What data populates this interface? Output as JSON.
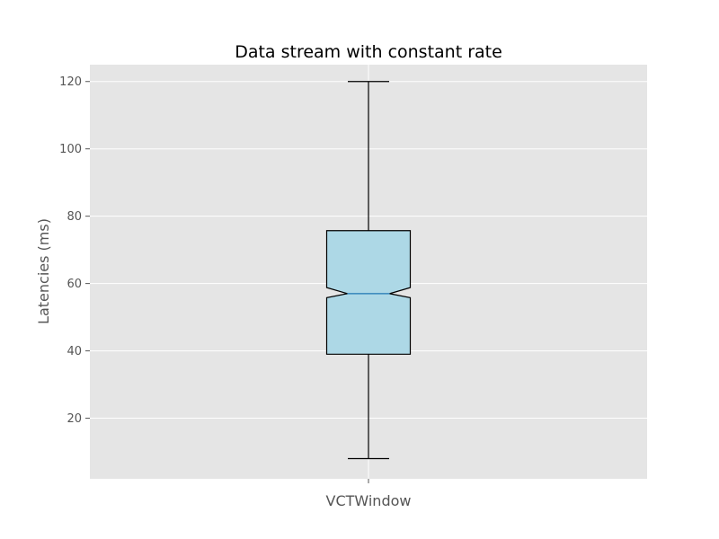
{
  "chart_data": {
    "type": "boxplot",
    "title": "Data stream with constant rate",
    "ylabel": "Latencies (ms)",
    "xlabel": "",
    "categories": [
      "VCTWindow"
    ],
    "ylim": [
      2,
      125
    ],
    "yticks": [
      20,
      40,
      60,
      80,
      100,
      120
    ],
    "ytick_labels": [
      "20",
      "40",
      "60",
      "80",
      "100",
      "120"
    ],
    "grid": true,
    "notched": true,
    "boxes": [
      {
        "category": "VCTWindow",
        "whisker_low": 8,
        "q1": 39,
        "median": 57,
        "q3": 75.7,
        "whisker_high": 120,
        "notch_low": 55.8,
        "notch_high": 58.8
      }
    ],
    "colors": {
      "background": "#e5e5e5",
      "grid": "#ffffff",
      "box_fill": "#add8e6",
      "box_edge": "#000000",
      "median_line": "#1f77b4",
      "whisker": "#000000"
    }
  }
}
